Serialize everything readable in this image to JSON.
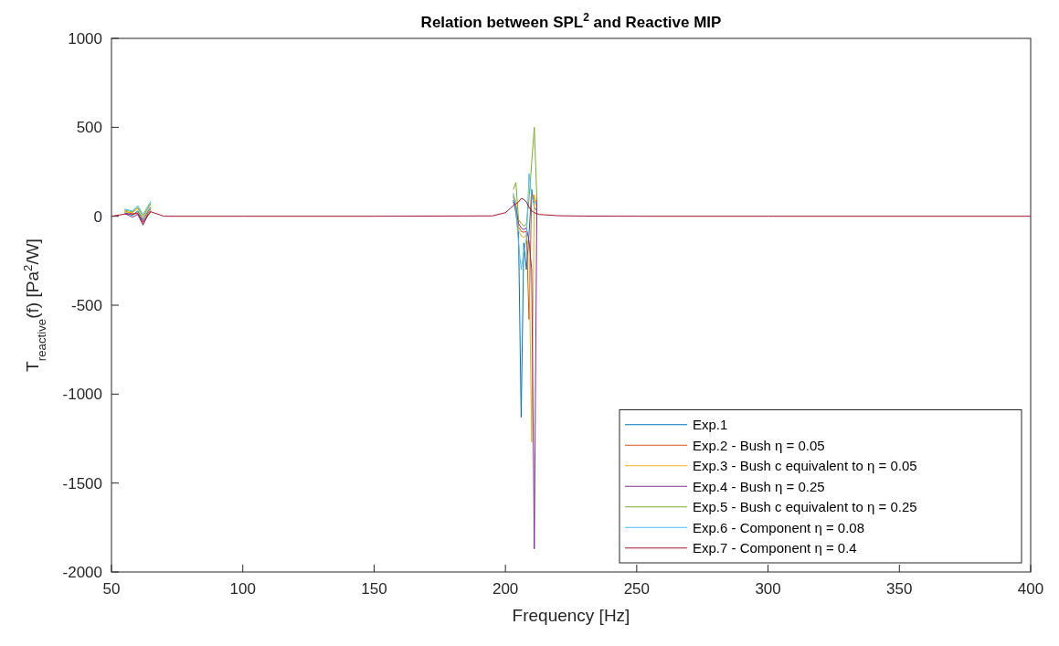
{
  "chart_data": {
    "type": "line",
    "title": "Relation between SPL$^{2}$ and Reactive MIP",
    "xlabel": "Frequency [Hz]",
    "ylabel": "T$_{reactive}$(f) [Pa$^{2}$/W]",
    "xlim": [
      50,
      400
    ],
    "xticks": [
      50,
      100,
      150,
      200,
      250,
      300,
      350,
      400
    ],
    "ylim": [
      -2000,
      1000
    ],
    "yticks": [
      -2000,
      -1500,
      -1000,
      -500,
      0,
      500,
      1000
    ],
    "grid": false,
    "legend": "bottom right",
    "line_style": "solid",
    "marker": "none",
    "series": [
      {
        "name": "Exp.1",
        "color": "#0072bd",
        "x": [
          55,
          58,
          60,
          62,
          64,
          65,
          67,
          203,
          204,
          205,
          206,
          207,
          208,
          209,
          210,
          211,
          212
        ],
        "values": [
          20,
          5,
          30,
          -20,
          30,
          50,
          null,
          90,
          20,
          -100,
          -1130,
          -150,
          -300,
          -100,
          150,
          50,
          30
        ]
      },
      {
        "name": "Exp.2 - Bush η = 0.05",
        "color": "#d95319",
        "x": [
          55,
          58,
          60,
          62,
          64,
          65,
          67,
          203,
          204,
          205,
          206,
          207,
          208,
          209,
          210,
          211,
          212
        ],
        "values": [
          30,
          12,
          20,
          -40,
          20,
          40,
          null,
          110,
          60,
          -60,
          -85,
          -90,
          -85,
          -580,
          130,
          100,
          60
        ]
      },
      {
        "name": "Exp.3 - Bush c equivalent to η = 0.05",
        "color": "#edb120",
        "x": [
          55,
          58,
          60,
          62,
          64,
          65,
          67,
          203,
          204,
          205,
          206,
          207,
          208,
          209,
          210,
          211,
          212
        ],
        "values": [
          25,
          20,
          45,
          -10,
          40,
          65,
          null,
          120,
          85,
          -80,
          -110,
          -120,
          -105,
          -200,
          -1270,
          120,
          45
        ]
      },
      {
        "name": "Exp.4 - Bush η = 0.25",
        "color": "#7e2f8e",
        "x": [
          55,
          58,
          60,
          62,
          64,
          65,
          67,
          203,
          204,
          205,
          206,
          207,
          208,
          209,
          210,
          211,
          212
        ],
        "values": [
          15,
          -5,
          10,
          -50,
          10,
          30,
          null,
          80,
          50,
          -40,
          -65,
          -75,
          -65,
          -140,
          -300,
          -1870,
          105
        ]
      },
      {
        "name": "Exp.5 - Bush c equivalent to η = 0.25",
        "color": "#77ac30",
        "x": [
          55,
          58,
          60,
          62,
          64,
          65,
          67,
          203,
          204,
          205,
          206,
          207,
          208,
          209,
          210,
          211,
          212
        ],
        "values": [
          35,
          25,
          50,
          0,
          50,
          75,
          null,
          150,
          190,
          -20,
          -40,
          -55,
          -45,
          100,
          300,
          500,
          90
        ]
      },
      {
        "name": "Exp.6 - Component η = 0.08",
        "color": "#4dbeee",
        "x": [
          55,
          58,
          60,
          62,
          64,
          65,
          67,
          203,
          204,
          205,
          206,
          207,
          208,
          209,
          210,
          211,
          212
        ],
        "values": [
          40,
          30,
          60,
          10,
          60,
          85,
          null,
          130,
          35,
          -150,
          -300,
          -200,
          -130,
          240,
          110,
          75,
          75
        ]
      },
      {
        "name": "Exp.7 - Component η = 0.4",
        "color": "#a2142f",
        "x": [
          50,
          55,
          60,
          62,
          65,
          70,
          100,
          150,
          195,
          200,
          203,
          204,
          205,
          206,
          207,
          208,
          209,
          210,
          211,
          212,
          213,
          215,
          220,
          230,
          250,
          300,
          400
        ],
        "values": [
          0,
          12,
          15,
          -30,
          25,
          0,
          0,
          0,
          2,
          20,
          60,
          70,
          80,
          100,
          95,
          80,
          50,
          30,
          20,
          15,
          10,
          8,
          3,
          1,
          0,
          0,
          0
        ]
      }
    ]
  }
}
